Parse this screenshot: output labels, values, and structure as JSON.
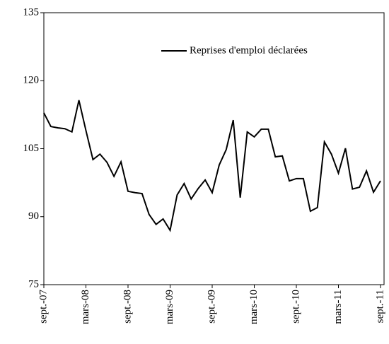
{
  "chart_data": {
    "type": "line",
    "categories": [
      "sept.-07",
      null,
      null,
      null,
      null,
      null,
      "mars-08",
      null,
      null,
      null,
      null,
      null,
      "sept.-08",
      null,
      null,
      null,
      null,
      null,
      "mars-09",
      null,
      null,
      null,
      null,
      null,
      "sept.-09",
      null,
      null,
      null,
      null,
      null,
      "mars-10",
      null,
      null,
      null,
      null,
      null,
      "sept.-10",
      null,
      null,
      null,
      null,
      null,
      "mars-11",
      null,
      null,
      null,
      null,
      null,
      "sept.-11"
    ],
    "series": [
      {
        "name": "Reprises d'emploi déclarées",
        "color": "#000000",
        "values": [
          112.9,
          109.9,
          109.6,
          109.4,
          108.7,
          115.7,
          109.0,
          102.6,
          103.8,
          102.0,
          98.9,
          102.1,
          95.6,
          95.3,
          95.1,
          90.5,
          88.3,
          89.5,
          87.0,
          94.8,
          97.3,
          93.9,
          96.2,
          98.1,
          95.3,
          101.4,
          104.8,
          111.3,
          94.2,
          108.7,
          107.6,
          109.3,
          109.3,
          103.2,
          103.4,
          97.9,
          98.4,
          98.4,
          91.2,
          92.0,
          106.5,
          103.8,
          99.6,
          105.1,
          96.1,
          96.5,
          100.1,
          95.4,
          97.9
        ]
      }
    ],
    "ylim": [
      75,
      135
    ],
    "yticks": [
      75,
      90,
      105,
      120,
      135
    ],
    "grid": false,
    "legend": "top-right"
  }
}
